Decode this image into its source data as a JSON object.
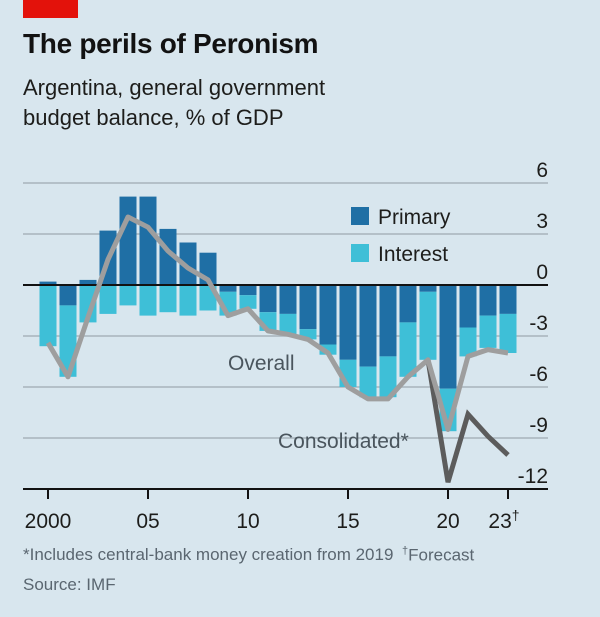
{
  "header": {
    "title": "The perils of Peronism",
    "subtitle_line1": "Argentina, general government",
    "subtitle_line2": "budget balance, % of GDP"
  },
  "footer": {
    "note": "*Includes central-bank money creation from 2019",
    "forecast_mark": "†",
    "forecast_note": "Forecast",
    "source": "Source: IMF"
  },
  "colors": {
    "brand_red": "#e3120b",
    "primary": "#1f6fa5",
    "interest": "#3ebfd7",
    "overall": "#9e9e9e",
    "consolidated": "#5c5c5c",
    "background": "#d8e6ee"
  },
  "chart_data": {
    "type": "bar",
    "title": "The perils of Peronism",
    "subtitle": "Argentina, general government budget balance, % of GDP",
    "xlabel": "",
    "ylabel": "% of GDP",
    "ylim": [
      -12,
      6
    ],
    "yticks": [
      6,
      3,
      0,
      -3,
      -6,
      -9,
      -12
    ],
    "ytick_labels": [
      "6",
      "3",
      "0",
      "-3",
      "-6",
      "-9",
      "-12"
    ],
    "x_tick_years": [
      2000,
      2005,
      2010,
      2015,
      2020,
      2023
    ],
    "x_tick_labels": [
      "2000",
      "05",
      "10",
      "15",
      "20",
      "23†"
    ],
    "grid": true,
    "legend_position": "top-right",
    "legend": [
      "Primary",
      "Interest"
    ],
    "stacked": true,
    "categories": [
      2000,
      2001,
      2002,
      2003,
      2004,
      2005,
      2006,
      2007,
      2008,
      2009,
      2010,
      2011,
      2012,
      2013,
      2014,
      2015,
      2016,
      2017,
      2018,
      2019,
      2020,
      2021,
      2022,
      2023
    ],
    "series": [
      {
        "name": "Primary",
        "type": "bar",
        "values": [
          0.2,
          -1.2,
          0.3,
          3.2,
          5.2,
          5.2,
          3.3,
          2.5,
          1.9,
          -0.4,
          -0.6,
          -1.6,
          -1.7,
          -2.6,
          -3.5,
          -4.4,
          -4.8,
          -4.2,
          -2.2,
          -0.4,
          -6.1,
          -2.5,
          -1.8,
          -1.7
        ]
      },
      {
        "name": "Interest",
        "type": "bar",
        "values": [
          -3.6,
          -4.2,
          -2.2,
          -1.7,
          -1.2,
          -1.8,
          -1.6,
          -1.8,
          -1.5,
          -1.4,
          -0.8,
          -1.1,
          -1.2,
          -0.6,
          -0.6,
          -1.6,
          -1.8,
          -2.4,
          -3.2,
          -4.0,
          -2.5,
          -1.7,
          -1.9,
          -2.3
        ]
      },
      {
        "name": "Overall",
        "type": "line",
        "x": [
          2000,
          2001,
          2002,
          2003,
          2004,
          2005,
          2006,
          2007,
          2008,
          2009,
          2010,
          2011,
          2012,
          2013,
          2014,
          2015,
          2016,
          2017,
          2018,
          2019,
          2020,
          2021,
          2022,
          2023
        ],
        "values": [
          -3.4,
          -5.4,
          -1.9,
          1.5,
          4.0,
          3.4,
          2.0,
          1.0,
          0.3,
          -1.8,
          -1.4,
          -2.7,
          -2.9,
          -3.2,
          -4.0,
          -6.0,
          -6.7,
          -6.7,
          -5.4,
          -4.4,
          -8.5,
          -4.2,
          -3.8,
          -4.0
        ]
      },
      {
        "name": "Consolidated*",
        "type": "line",
        "x": [
          2019,
          2020,
          2021,
          2022,
          2023
        ],
        "values": [
          -4.4,
          -11.6,
          -7.6,
          -8.9,
          -10.0
        ]
      }
    ],
    "annotations": [
      {
        "text": "Overall",
        "series": "Overall"
      },
      {
        "text": "Consolidated*",
        "series": "Consolidated*"
      }
    ]
  }
}
